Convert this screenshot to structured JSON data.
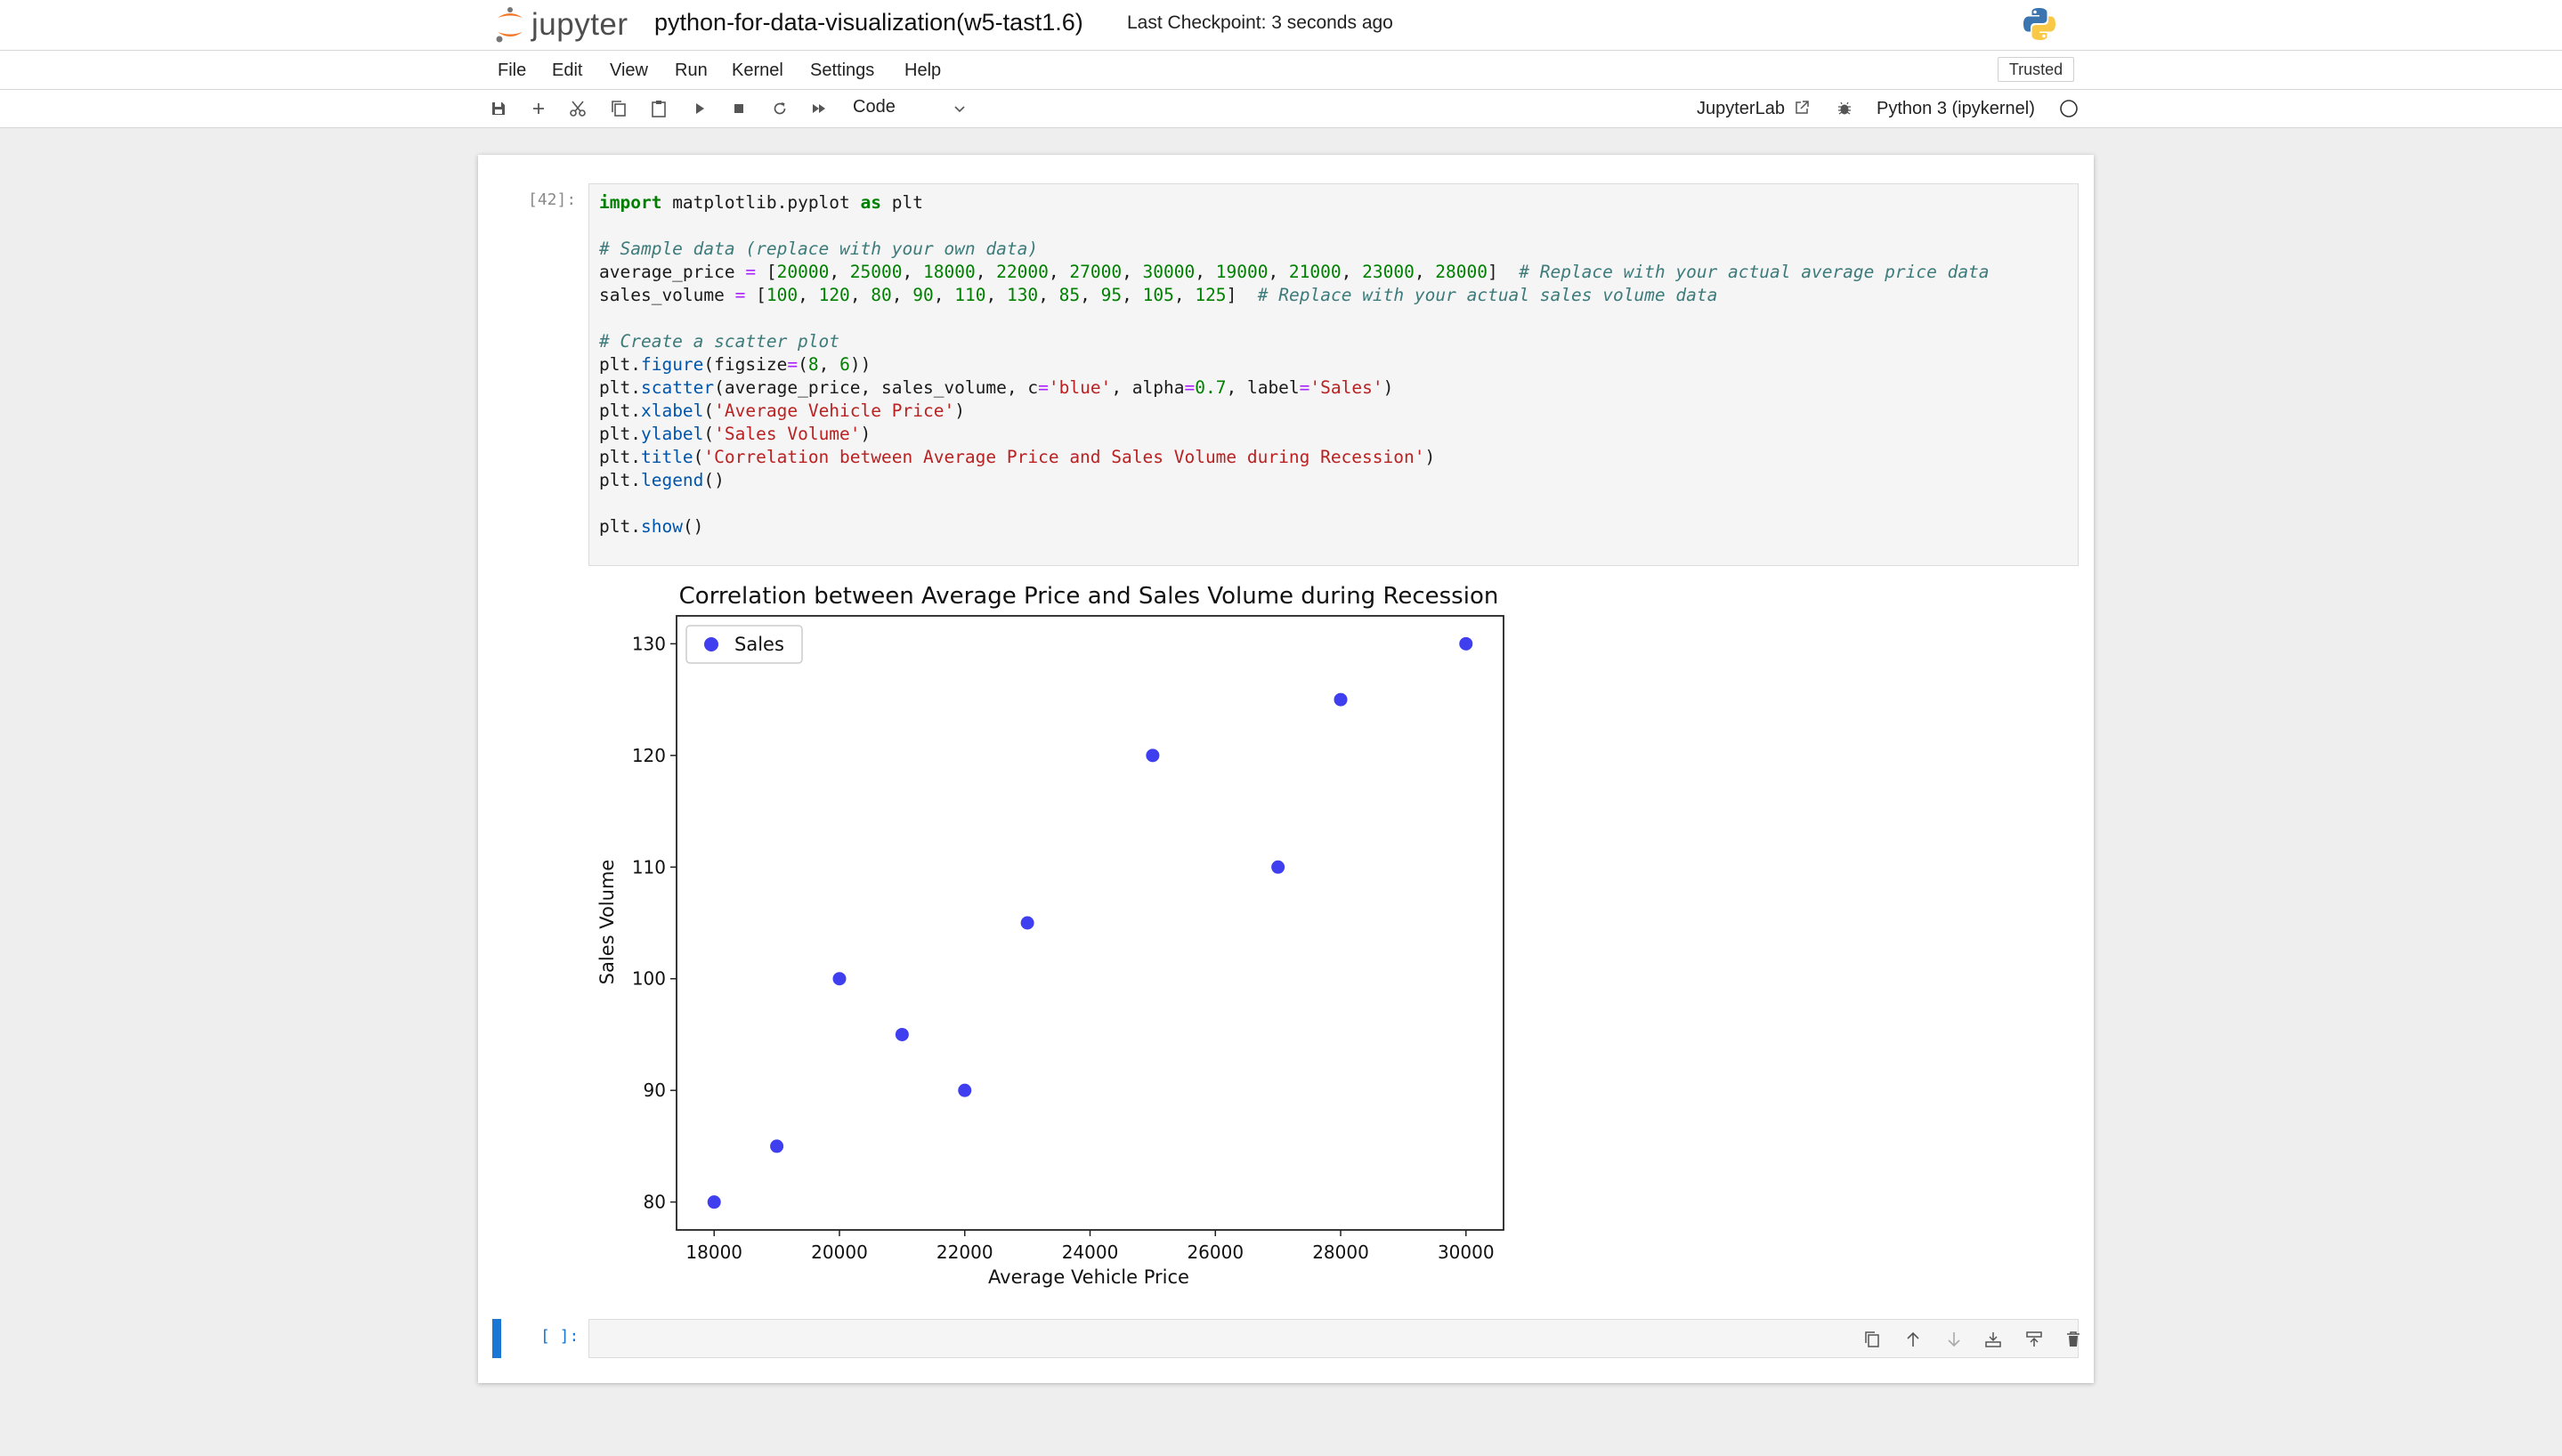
{
  "header": {
    "logo_text": "jupyter",
    "notebook_name": "python-for-data-visualization(w5-tast1.6)",
    "checkpoint": "Last Checkpoint: 3 seconds ago"
  },
  "menu": [
    "File",
    "Edit",
    "View",
    "Run",
    "Kernel",
    "Settings",
    "Help"
  ],
  "trusted_label": "Trusted",
  "toolbar": {
    "icons": [
      "save-icon",
      "add-cell-icon",
      "cut-icon",
      "copy-icon",
      "paste-icon",
      "run-icon",
      "stop-icon",
      "restart-icon",
      "fast-forward-icon"
    ],
    "cell_type": "Code",
    "jupyterlab_label": "JupyterLab",
    "kernel_name": "Python 3 (ipykernel)"
  },
  "cell1": {
    "prompt": "[42]:",
    "code_lines": [
      "import matplotlib.pyplot as plt",
      "",
      "# Sample data (replace with your own data)",
      "average_price = [20000, 25000, 18000, 22000, 27000, 30000, 19000, 21000, 23000, 28000]  # Replace with your actual average price data",
      "sales_volume = [100, 120, 80, 90, 110, 130, 85, 95, 105, 125]  # Replace with your actual sales volume data",
      "",
      "# Create a scatter plot",
      "plt.figure(figsize=(8, 6))",
      "plt.scatter(average_price, sales_volume, c='blue', alpha=0.7, label='Sales')",
      "plt.xlabel('Average Vehicle Price')",
      "plt.ylabel('Sales Volume')",
      "plt.title('Correlation between Average Price and Sales Volume during Recession')",
      "plt.legend()",
      "",
      "plt.show()"
    ]
  },
  "cell2": {
    "prompt": "[ ]:"
  },
  "chart_data": {
    "type": "scatter",
    "title": "Correlation between Average Price and Sales Volume during Recession",
    "xlabel": "Average Vehicle Price",
    "ylabel": "Sales Volume",
    "series": [
      {
        "name": "Sales",
        "color": "#3f3fef",
        "x": [
          20000,
          25000,
          18000,
          22000,
          27000,
          30000,
          19000,
          21000,
          23000,
          28000
        ],
        "y": [
          100,
          120,
          80,
          90,
          110,
          130,
          85,
          95,
          105,
          125
        ]
      }
    ],
    "xlim": [
      17400,
      30600
    ],
    "ylim": [
      77.5,
      132.5
    ],
    "xticks": [
      18000,
      20000,
      22000,
      24000,
      26000,
      28000,
      30000
    ],
    "yticks": [
      80,
      90,
      100,
      110,
      120,
      130
    ],
    "legend_position": "top-left",
    "grid": false
  }
}
